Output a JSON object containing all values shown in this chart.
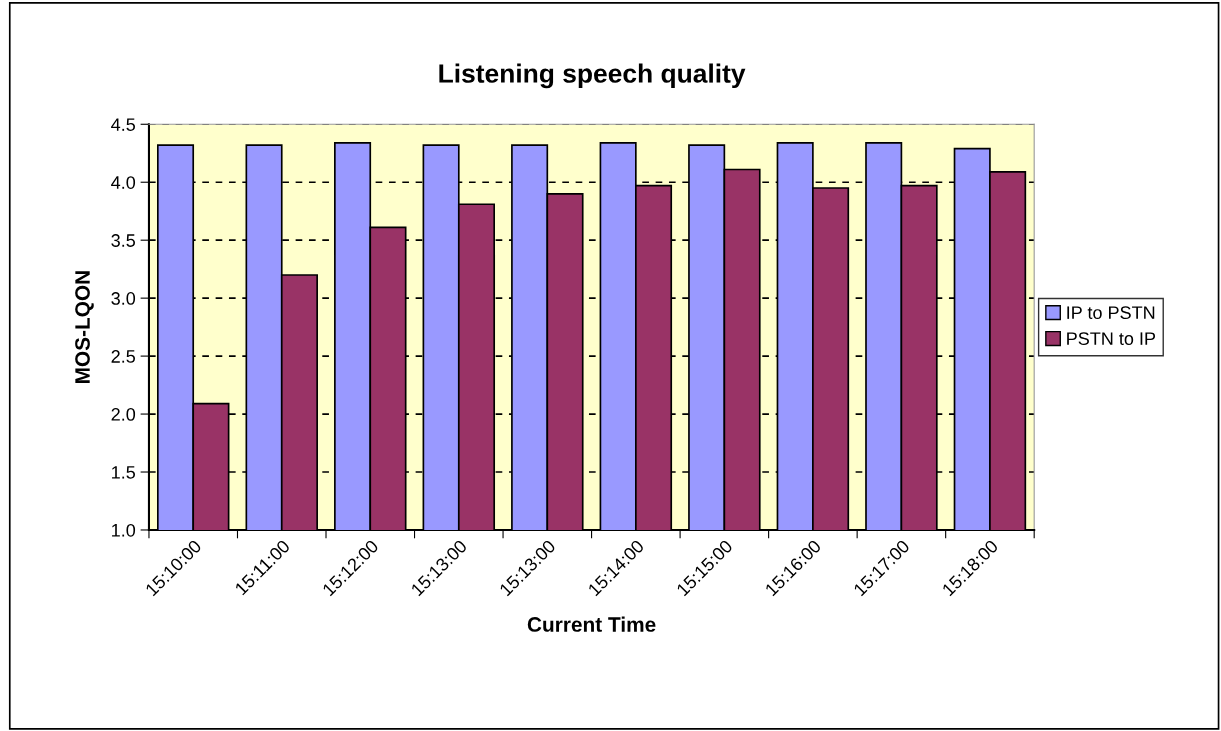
{
  "chart_data": {
    "type": "bar",
    "title": "Listening speech quality",
    "xlabel": "Current Time",
    "ylabel": "MOS-LQON",
    "categories": [
      "15:10:00",
      "15:11:00",
      "15:12:00",
      "15:13:00",
      "15:13:00",
      "15:14:00",
      "15:15:00",
      "15:16:00",
      "15:17:00",
      "15:18:00"
    ],
    "series": [
      {
        "name": "IP to PSTN",
        "color": "#9999ff",
        "values": [
          4.32,
          4.32,
          4.34,
          4.32,
          4.32,
          4.34,
          4.32,
          4.34,
          4.34,
          4.29
        ]
      },
      {
        "name": "PSTN to IP",
        "color": "#993366",
        "values": [
          2.09,
          3.2,
          3.61,
          3.81,
          3.9,
          3.97,
          4.11,
          3.95,
          3.97,
          4.09
        ]
      }
    ],
    "ylim": [
      1.0,
      4.5
    ],
    "yticks": [
      {
        "value": 1.0,
        "label": "1.0"
      },
      {
        "value": 1.5,
        "label": "1.5"
      },
      {
        "value": 2.0,
        "label": "2.0"
      },
      {
        "value": 2.5,
        "label": "2.5"
      },
      {
        "value": 3.0,
        "label": "3.0"
      },
      {
        "value": 3.5,
        "label": "3.5"
      },
      {
        "value": 4.0,
        "label": "4.0"
      },
      {
        "value": 4.5,
        "label": "4.5"
      }
    ],
    "bands": [
      {
        "axis": "y",
        "from": 1.0,
        "to": 4.5,
        "color": "#ffffcc"
      }
    ],
    "grid": "y",
    "legend": "right"
  }
}
